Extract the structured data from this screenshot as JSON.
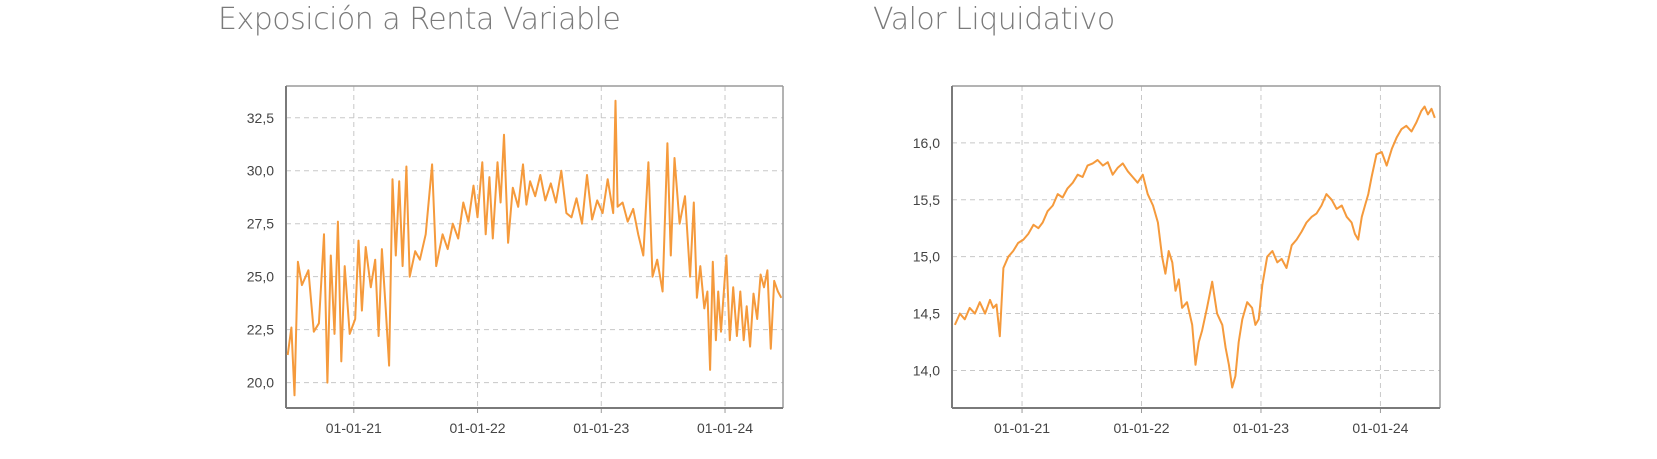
{
  "colors": {
    "line": "#F59A3C",
    "grid": "#c8c8c8",
    "axis": "#9a9a9a",
    "title": "#7a7a7a"
  },
  "chart_data": [
    {
      "type": "line",
      "title": "Exposición a Renta Variable",
      "xlabel": "",
      "ylabel": "",
      "grid": true,
      "xlim": [
        "2020-06-15",
        "2024-06-20"
      ],
      "ylim": [
        18.8,
        34.0
      ],
      "x_ticks": [
        "01-01-21",
        "01-01-22",
        "01-01-23",
        "01-01-24"
      ],
      "y_ticks": [
        "20,0",
        "22,5",
        "25,0",
        "27,5",
        "30,0",
        "32,5"
      ],
      "series": [
        {
          "points": [
            [
              "2020-06-20",
              21.3
            ],
            [
              "2020-07-01",
              22.6
            ],
            [
              "2020-07-10",
              19.4
            ],
            [
              "2020-07-20",
              25.7
            ],
            [
              "2020-08-01",
              24.6
            ],
            [
              "2020-08-20",
              25.3
            ],
            [
              "2020-09-05",
              22.4
            ],
            [
              "2020-09-20",
              22.8
            ],
            [
              "2020-10-05",
              27.0
            ],
            [
              "2020-10-15",
              20.0
            ],
            [
              "2020-10-25",
              26.0
            ],
            [
              "2020-11-05",
              22.3
            ],
            [
              "2020-11-15",
              27.6
            ],
            [
              "2020-11-25",
              21.0
            ],
            [
              "2020-12-05",
              25.5
            ],
            [
              "2020-12-20",
              22.3
            ],
            [
              "2021-01-05",
              23.0
            ],
            [
              "2021-01-15",
              26.7
            ],
            [
              "2021-01-25",
              23.4
            ],
            [
              "2021-02-05",
              26.4
            ],
            [
              "2021-02-20",
              24.5
            ],
            [
              "2021-03-05",
              25.8
            ],
            [
              "2021-03-15",
              22.2
            ],
            [
              "2021-03-25",
              26.3
            ],
            [
              "2021-04-05",
              23.5
            ],
            [
              "2021-04-15",
              20.8
            ],
            [
              "2021-04-25",
              29.6
            ],
            [
              "2021-05-05",
              26.0
            ],
            [
              "2021-05-15",
              29.5
            ],
            [
              "2021-05-25",
              25.5
            ],
            [
              "2021-06-05",
              30.2
            ],
            [
              "2021-06-15",
              25.0
            ],
            [
              "2021-07-01",
              26.2
            ],
            [
              "2021-07-15",
              25.8
            ],
            [
              "2021-08-01",
              27.0
            ],
            [
              "2021-08-20",
              30.3
            ],
            [
              "2021-09-01",
              25.5
            ],
            [
              "2021-09-20",
              27.0
            ],
            [
              "2021-10-05",
              26.3
            ],
            [
              "2021-10-20",
              27.5
            ],
            [
              "2021-11-05",
              26.8
            ],
            [
              "2021-11-20",
              28.5
            ],
            [
              "2021-12-05",
              27.6
            ],
            [
              "2021-12-20",
              29.3
            ],
            [
              "2022-01-01",
              27.8
            ],
            [
              "2022-01-15",
              30.4
            ],
            [
              "2022-01-25",
              27.0
            ],
            [
              "2022-02-05",
              29.7
            ],
            [
              "2022-02-15",
              26.8
            ],
            [
              "2022-03-01",
              30.4
            ],
            [
              "2022-03-10",
              28.5
            ],
            [
              "2022-03-20",
              31.7
            ],
            [
              "2022-04-01",
              26.6
            ],
            [
              "2022-04-15",
              29.2
            ],
            [
              "2022-05-01",
              28.3
            ],
            [
              "2022-05-15",
              30.3
            ],
            [
              "2022-05-25",
              28.4
            ],
            [
              "2022-06-05",
              29.5
            ],
            [
              "2022-06-20",
              28.8
            ],
            [
              "2022-07-05",
              29.8
            ],
            [
              "2022-07-20",
              28.6
            ],
            [
              "2022-08-05",
              29.4
            ],
            [
              "2022-08-20",
              28.5
            ],
            [
              "2022-09-05",
              30.0
            ],
            [
              "2022-09-20",
              28.0
            ],
            [
              "2022-10-05",
              27.8
            ],
            [
              "2022-10-20",
              28.7
            ],
            [
              "2022-11-05",
              27.5
            ],
            [
              "2022-11-20",
              29.8
            ],
            [
              "2022-12-05",
              27.7
            ],
            [
              "2022-12-20",
              28.6
            ],
            [
              "2023-01-05",
              28.0
            ],
            [
              "2023-01-20",
              29.6
            ],
            [
              "2023-02-05",
              28.0
            ],
            [
              "2023-02-12",
              33.3
            ],
            [
              "2023-02-18",
              28.3
            ],
            [
              "2023-03-05",
              28.5
            ],
            [
              "2023-03-20",
              27.6
            ],
            [
              "2023-04-05",
              28.2
            ],
            [
              "2023-04-20",
              27.0
            ],
            [
              "2023-05-05",
              26.0
            ],
            [
              "2023-05-20",
              30.4
            ],
            [
              "2023-06-01",
              25.0
            ],
            [
              "2023-06-15",
              25.8
            ],
            [
              "2023-07-01",
              24.3
            ],
            [
              "2023-07-15",
              31.3
            ],
            [
              "2023-07-25",
              26.0
            ],
            [
              "2023-08-05",
              30.6
            ],
            [
              "2023-08-20",
              27.5
            ],
            [
              "2023-09-05",
              28.8
            ],
            [
              "2023-09-20",
              25.0
            ],
            [
              "2023-10-01",
              28.5
            ],
            [
              "2023-10-10",
              24.0
            ],
            [
              "2023-10-20",
              25.5
            ],
            [
              "2023-11-01",
              23.5
            ],
            [
              "2023-11-10",
              24.3
            ],
            [
              "2023-11-18",
              20.6
            ],
            [
              "2023-11-26",
              25.7
            ],
            [
              "2023-12-05",
              22.0
            ],
            [
              "2023-12-12",
              24.3
            ],
            [
              "2023-12-20",
              22.4
            ],
            [
              "2024-01-05",
              26.0
            ],
            [
              "2024-01-15",
              22.0
            ],
            [
              "2024-01-25",
              24.5
            ],
            [
              "2024-02-05",
              22.2
            ],
            [
              "2024-02-15",
              24.3
            ],
            [
              "2024-02-25",
              22.0
            ],
            [
              "2024-03-05",
              23.6
            ],
            [
              "2024-03-15",
              21.7
            ],
            [
              "2024-03-25",
              24.2
            ],
            [
              "2024-04-05",
              23.0
            ],
            [
              "2024-04-15",
              25.1
            ],
            [
              "2024-04-25",
              24.5
            ],
            [
              "2024-05-05",
              25.3
            ],
            [
              "2024-05-15",
              21.6
            ],
            [
              "2024-05-25",
              24.8
            ],
            [
              "2024-06-05",
              24.3
            ],
            [
              "2024-06-15",
              24.0
            ]
          ]
        }
      ]
    },
    {
      "type": "line",
      "title": "Valor Liquidativo",
      "xlabel": "",
      "ylabel": "",
      "grid": true,
      "xlim": [
        "2020-06-01",
        "2024-07-01"
      ],
      "ylim": [
        13.67,
        16.5
      ],
      "x_ticks": [
        "01-01-21",
        "01-01-22",
        "01-01-23",
        "01-01-24"
      ],
      "y_ticks": [
        "14,0",
        "14,5",
        "15,0",
        "15,5",
        "16,0"
      ],
      "series": [
        {
          "points": [
            [
              "2020-06-10",
              14.4
            ],
            [
              "2020-06-25",
              14.5
            ],
            [
              "2020-07-10",
              14.45
            ],
            [
              "2020-07-25",
              14.55
            ],
            [
              "2020-08-10",
              14.5
            ],
            [
              "2020-08-25",
              14.6
            ],
            [
              "2020-09-10",
              14.5
            ],
            [
              "2020-09-25",
              14.62
            ],
            [
              "2020-10-05",
              14.55
            ],
            [
              "2020-10-15",
              14.58
            ],
            [
              "2020-10-25",
              14.3
            ],
            [
              "2020-11-05",
              14.9
            ],
            [
              "2020-11-20",
              15.0
            ],
            [
              "2020-12-05",
              15.05
            ],
            [
              "2020-12-20",
              15.12
            ],
            [
              "2021-01-05",
              15.15
            ],
            [
              "2021-01-20",
              15.2
            ],
            [
              "2021-02-05",
              15.28
            ],
            [
              "2021-02-20",
              15.25
            ],
            [
              "2021-03-05",
              15.3
            ],
            [
              "2021-03-20",
              15.4
            ],
            [
              "2021-04-05",
              15.45
            ],
            [
              "2021-04-20",
              15.55
            ],
            [
              "2021-05-05",
              15.52
            ],
            [
              "2021-05-20",
              15.6
            ],
            [
              "2021-06-05",
              15.65
            ],
            [
              "2021-06-20",
              15.72
            ],
            [
              "2021-07-05",
              15.7
            ],
            [
              "2021-07-20",
              15.8
            ],
            [
              "2021-08-05",
              15.82
            ],
            [
              "2021-08-20",
              15.85
            ],
            [
              "2021-09-05",
              15.8
            ],
            [
              "2021-09-20",
              15.83
            ],
            [
              "2021-10-05",
              15.72
            ],
            [
              "2021-10-20",
              15.78
            ],
            [
              "2021-11-05",
              15.82
            ],
            [
              "2021-11-20",
              15.75
            ],
            [
              "2021-12-05",
              15.7
            ],
            [
              "2021-12-20",
              15.65
            ],
            [
              "2022-01-05",
              15.72
            ],
            [
              "2022-01-20",
              15.55
            ],
            [
              "2022-02-05",
              15.45
            ],
            [
              "2022-02-20",
              15.3
            ],
            [
              "2022-03-05",
              15.0
            ],
            [
              "2022-03-15",
              14.85
            ],
            [
              "2022-03-25",
              15.05
            ],
            [
              "2022-04-05",
              14.95
            ],
            [
              "2022-04-15",
              14.7
            ],
            [
              "2022-04-25",
              14.8
            ],
            [
              "2022-05-05",
              14.55
            ],
            [
              "2022-05-20",
              14.6
            ],
            [
              "2022-06-05",
              14.4
            ],
            [
              "2022-06-15",
              14.05
            ],
            [
              "2022-06-25",
              14.25
            ],
            [
              "2022-07-05",
              14.35
            ],
            [
              "2022-07-20",
              14.55
            ],
            [
              "2022-08-05",
              14.78
            ],
            [
              "2022-08-20",
              14.5
            ],
            [
              "2022-09-05",
              14.4
            ],
            [
              "2022-09-15",
              14.2
            ],
            [
              "2022-09-25",
              14.05
            ],
            [
              "2022-10-05",
              13.85
            ],
            [
              "2022-10-15",
              13.95
            ],
            [
              "2022-10-25",
              14.25
            ],
            [
              "2022-11-05",
              14.45
            ],
            [
              "2022-11-20",
              14.6
            ],
            [
              "2022-12-05",
              14.55
            ],
            [
              "2022-12-15",
              14.4
            ],
            [
              "2022-12-25",
              14.45
            ],
            [
              "2023-01-05",
              14.75
            ],
            [
              "2023-01-20",
              15.0
            ],
            [
              "2023-02-05",
              15.05
            ],
            [
              "2023-02-20",
              14.95
            ],
            [
              "2023-03-05",
              14.98
            ],
            [
              "2023-03-20",
              14.9
            ],
            [
              "2023-04-05",
              15.1
            ],
            [
              "2023-04-20",
              15.15
            ],
            [
              "2023-05-05",
              15.22
            ],
            [
              "2023-05-20",
              15.3
            ],
            [
              "2023-06-05",
              15.35
            ],
            [
              "2023-06-20",
              15.38
            ],
            [
              "2023-07-05",
              15.45
            ],
            [
              "2023-07-20",
              15.55
            ],
            [
              "2023-08-05",
              15.5
            ],
            [
              "2023-08-20",
              15.42
            ],
            [
              "2023-09-05",
              15.45
            ],
            [
              "2023-09-20",
              15.35
            ],
            [
              "2023-10-05",
              15.3
            ],
            [
              "2023-10-15",
              15.2
            ],
            [
              "2023-10-25",
              15.15
            ],
            [
              "2023-11-05",
              15.35
            ],
            [
              "2023-11-15",
              15.45
            ],
            [
              "2023-11-25",
              15.55
            ],
            [
              "2023-12-05",
              15.7
            ],
            [
              "2023-12-20",
              15.9
            ],
            [
              "2024-01-05",
              15.92
            ],
            [
              "2024-01-20",
              15.8
            ],
            [
              "2024-02-05",
              15.95
            ],
            [
              "2024-02-20",
              16.05
            ],
            [
              "2024-03-05",
              16.12
            ],
            [
              "2024-03-20",
              16.15
            ],
            [
              "2024-04-05",
              16.1
            ],
            [
              "2024-04-20",
              16.18
            ],
            [
              "2024-05-05",
              16.28
            ],
            [
              "2024-05-15",
              16.32
            ],
            [
              "2024-05-25",
              16.25
            ],
            [
              "2024-06-05",
              16.3
            ],
            [
              "2024-06-15",
              16.22
            ]
          ]
        }
      ]
    }
  ]
}
